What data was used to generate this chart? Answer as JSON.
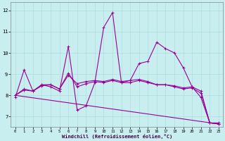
{
  "title": "",
  "xlabel": "Windchill (Refroidissement éolien,°C)",
  "bg_color": "#c8eef0",
  "line_color": "#990099",
  "grid_color": "#b0dde0",
  "xlim": [
    -0.5,
    23.5
  ],
  "ylim": [
    6.5,
    12.4
  ],
  "xticks": [
    0,
    1,
    2,
    3,
    4,
    5,
    6,
    7,
    8,
    9,
    10,
    11,
    12,
    13,
    14,
    15,
    16,
    17,
    18,
    19,
    20,
    21,
    22,
    23
  ],
  "yticks": [
    7,
    8,
    9,
    10,
    11,
    12
  ],
  "line1_x": [
    0,
    1,
    2,
    3,
    4,
    5,
    6,
    7,
    8,
    9,
    10,
    11,
    12,
    13,
    14,
    15,
    16,
    17,
    18,
    19,
    20,
    21,
    22,
    23
  ],
  "line1_y": [
    7.9,
    9.2,
    8.2,
    8.5,
    8.4,
    8.2,
    10.3,
    7.3,
    7.5,
    8.6,
    11.2,
    11.9,
    8.6,
    8.7,
    9.5,
    9.6,
    10.5,
    10.2,
    10.0,
    9.3,
    8.4,
    7.9,
    6.7,
    6.7
  ],
  "line2_x": [
    0,
    1,
    2,
    3,
    4,
    5,
    6,
    7,
    8,
    9,
    10,
    11,
    12,
    13,
    14,
    15,
    16,
    17,
    18,
    19,
    20,
    21,
    22,
    23
  ],
  "line2_y": [
    8.0,
    8.3,
    8.2,
    8.5,
    8.5,
    8.3,
    8.95,
    8.55,
    8.65,
    8.7,
    8.65,
    8.75,
    8.65,
    8.7,
    8.75,
    8.65,
    8.5,
    8.5,
    8.45,
    8.35,
    8.4,
    8.2,
    6.7,
    6.65
  ],
  "line3_x": [
    0,
    1,
    2,
    3,
    4,
    5,
    6,
    7,
    8,
    9,
    10,
    11,
    12,
    13,
    14,
    15,
    16,
    17,
    18,
    19,
    20,
    21,
    22,
    23
  ],
  "line3_y": [
    8.0,
    8.25,
    8.2,
    8.45,
    8.5,
    8.3,
    9.05,
    8.4,
    8.55,
    8.65,
    8.6,
    8.7,
    8.6,
    8.6,
    8.7,
    8.6,
    8.5,
    8.5,
    8.4,
    8.3,
    8.35,
    8.1,
    6.7,
    6.65
  ],
  "line4_x": [
    0,
    23
  ],
  "line4_y": [
    8.0,
    6.65
  ],
  "marker_size": 2.5,
  "linewidth": 0.8
}
